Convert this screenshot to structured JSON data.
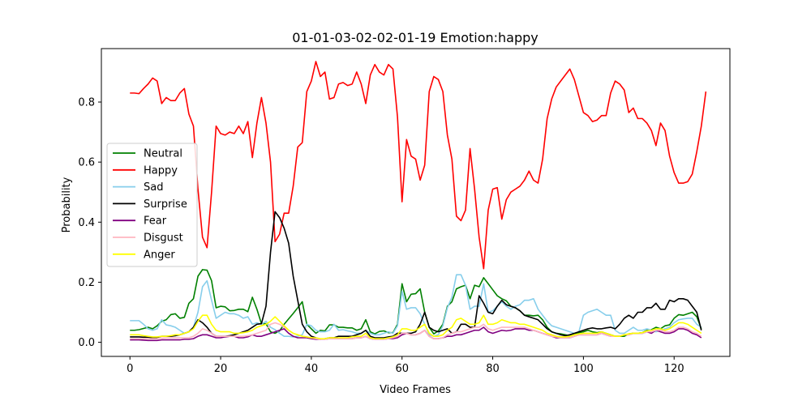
{
  "chart_data": {
    "type": "line",
    "title": "01-01-03-02-02-01-19 Emotion:happy",
    "xlabel": "Video Frames",
    "ylabel": "Probability",
    "xlim": [
      -6.3,
      132.3
    ],
    "ylim": [
      -0.047,
      0.978
    ],
    "xticks": [
      0,
      20,
      40,
      60,
      80,
      100,
      120
    ],
    "yticks": [
      0.0,
      0.2,
      0.4,
      0.6,
      0.8
    ],
    "xtick_labels": [
      "0",
      "20",
      "40",
      "60",
      "80",
      "100",
      "120"
    ],
    "ytick_labels": [
      "0.0",
      "0.2",
      "0.4",
      "0.6",
      "0.8"
    ],
    "grid": false,
    "legend": "center-left",
    "series": [
      {
        "name": "Neutral",
        "color": "#008000",
        "values": [
          0.04,
          0.04,
          0.042,
          0.046,
          0.05,
          0.045,
          0.055,
          0.07,
          0.075,
          0.092,
          0.095,
          0.08,
          0.083,
          0.13,
          0.145,
          0.22,
          0.242,
          0.24,
          0.205,
          0.115,
          0.12,
          0.118,
          0.105,
          0.106,
          0.11,
          0.11,
          0.102,
          0.15,
          0.11,
          0.062,
          0.062,
          0.035,
          0.03,
          0.038,
          0.06,
          0.078,
          0.096,
          0.115,
          0.135,
          0.06,
          0.045,
          0.03,
          0.04,
          0.038,
          0.058,
          0.058,
          0.05,
          0.05,
          0.048,
          0.048,
          0.04,
          0.045,
          0.075,
          0.035,
          0.028,
          0.036,
          0.038,
          0.032,
          0.032,
          0.06,
          0.195,
          0.135,
          0.16,
          0.162,
          0.178,
          0.1,
          0.05,
          0.028,
          0.038,
          0.06,
          0.12,
          0.135,
          0.178,
          0.185,
          0.19,
          0.145,
          0.19,
          0.185,
          0.215,
          0.195,
          0.175,
          0.155,
          0.145,
          0.138,
          0.12,
          0.115,
          0.105,
          0.09,
          0.09,
          0.088,
          0.09,
          0.075,
          0.05,
          0.035,
          0.03,
          0.028,
          0.025,
          0.022,
          0.028,
          0.032,
          0.035,
          0.04,
          0.035,
          0.032,
          0.035,
          0.03,
          0.025,
          0.02,
          0.02,
          0.02,
          0.028,
          0.03,
          0.03,
          0.032,
          0.04,
          0.042,
          0.05,
          0.045,
          0.055,
          0.058,
          0.08,
          0.092,
          0.09,
          0.095,
          0.1,
          0.085,
          0.045
        ]
      },
      {
        "name": "Happy",
        "color": "#ff0000",
        "values": [
          0.83,
          0.83,
          0.828,
          0.845,
          0.86,
          0.88,
          0.87,
          0.795,
          0.815,
          0.805,
          0.805,
          0.83,
          0.845,
          0.76,
          0.72,
          0.51,
          0.35,
          0.315,
          0.5,
          0.72,
          0.695,
          0.69,
          0.7,
          0.695,
          0.72,
          0.695,
          0.735,
          0.615,
          0.73,
          0.815,
          0.73,
          0.6,
          0.335,
          0.36,
          0.43,
          0.43,
          0.52,
          0.65,
          0.665,
          0.835,
          0.87,
          0.935,
          0.885,
          0.9,
          0.81,
          0.815,
          0.86,
          0.865,
          0.855,
          0.86,
          0.9,
          0.86,
          0.795,
          0.89,
          0.925,
          0.9,
          0.89,
          0.925,
          0.91,
          0.75,
          0.468,
          0.675,
          0.62,
          0.61,
          0.54,
          0.59,
          0.835,
          0.885,
          0.875,
          0.835,
          0.69,
          0.61,
          0.42,
          0.405,
          0.44,
          0.645,
          0.51,
          0.35,
          0.245,
          0.44,
          0.51,
          0.515,
          0.41,
          0.475,
          0.5,
          0.51,
          0.52,
          0.54,
          0.57,
          0.54,
          0.53,
          0.61,
          0.745,
          0.81,
          0.85,
          0.87,
          0.89,
          0.91,
          0.875,
          0.82,
          0.765,
          0.755,
          0.735,
          0.74,
          0.755,
          0.755,
          0.83,
          0.87,
          0.86,
          0.84,
          0.765,
          0.78,
          0.745,
          0.745,
          0.73,
          0.705,
          0.655,
          0.73,
          0.705,
          0.62,
          0.565,
          0.53,
          0.53,
          0.535,
          0.56,
          0.635,
          0.72,
          0.835
        ]
      },
      {
        "name": "Sad",
        "color": "#87ceeb",
        "values": [
          0.072,
          0.072,
          0.072,
          0.06,
          0.045,
          0.04,
          0.045,
          0.075,
          0.058,
          0.055,
          0.05,
          0.04,
          0.03,
          0.035,
          0.05,
          0.1,
          0.185,
          0.205,
          0.14,
          0.08,
          0.09,
          0.1,
          0.095,
          0.095,
          0.09,
          0.08,
          0.085,
          0.06,
          0.065,
          0.06,
          0.07,
          0.05,
          0.042,
          0.03,
          0.02,
          0.02,
          0.018,
          0.02,
          0.025,
          0.06,
          0.055,
          0.04,
          0.035,
          0.035,
          0.04,
          0.06,
          0.04,
          0.042,
          0.038,
          0.035,
          0.03,
          0.03,
          0.04,
          0.03,
          0.025,
          0.025,
          0.03,
          0.035,
          0.03,
          0.055,
          0.17,
          0.11,
          0.115,
          0.115,
          0.095,
          0.06,
          0.025,
          0.02,
          0.025,
          0.055,
          0.115,
          0.15,
          0.225,
          0.225,
          0.19,
          0.11,
          0.12,
          0.12,
          0.195,
          0.1,
          0.105,
          0.12,
          0.135,
          0.12,
          0.11,
          0.12,
          0.125,
          0.14,
          0.14,
          0.145,
          0.11,
          0.09,
          0.07,
          0.055,
          0.05,
          0.045,
          0.04,
          0.035,
          0.03,
          0.035,
          0.09,
          0.1,
          0.105,
          0.11,
          0.1,
          0.09,
          0.09,
          0.04,
          0.03,
          0.03,
          0.04,
          0.05,
          0.04,
          0.04,
          0.045,
          0.04,
          0.035,
          0.04,
          0.045,
          0.05,
          0.065,
          0.075,
          0.078,
          0.08,
          0.08,
          0.06,
          0.05
        ]
      },
      {
        "name": "Surprise",
        "color": "#000000",
        "values": [
          0.018,
          0.018,
          0.018,
          0.017,
          0.017,
          0.015,
          0.016,
          0.02,
          0.02,
          0.02,
          0.022,
          0.025,
          0.03,
          0.035,
          0.05,
          0.075,
          0.065,
          0.05,
          0.03,
          0.02,
          0.02,
          0.02,
          0.022,
          0.025,
          0.03,
          0.035,
          0.04,
          0.05,
          0.06,
          0.062,
          0.12,
          0.3,
          0.435,
          0.415,
          0.38,
          0.33,
          0.22,
          0.14,
          0.06,
          0.035,
          0.02,
          0.015,
          0.01,
          0.012,
          0.015,
          0.015,
          0.02,
          0.02,
          0.02,
          0.02,
          0.025,
          0.03,
          0.04,
          0.02,
          0.015,
          0.015,
          0.015,
          0.018,
          0.02,
          0.03,
          0.03,
          0.03,
          0.03,
          0.035,
          0.06,
          0.1,
          0.05,
          0.04,
          0.035,
          0.04,
          0.045,
          0.03,
          0.035,
          0.06,
          0.06,
          0.05,
          0.05,
          0.155,
          0.13,
          0.1,
          0.095,
          0.12,
          0.14,
          0.125,
          0.12,
          0.115,
          0.105,
          0.09,
          0.085,
          0.08,
          0.075,
          0.06,
          0.045,
          0.035,
          0.03,
          0.025,
          0.022,
          0.025,
          0.03,
          0.035,
          0.04,
          0.045,
          0.048,
          0.045,
          0.045,
          0.048,
          0.05,
          0.045,
          0.06,
          0.08,
          0.09,
          0.08,
          0.1,
          0.1,
          0.115,
          0.115,
          0.13,
          0.11,
          0.11,
          0.14,
          0.135,
          0.145,
          0.145,
          0.14,
          0.12,
          0.1,
          0.04
        ]
      },
      {
        "name": "Fear",
        "color": "#800080",
        "values": [
          0.008,
          0.008,
          0.008,
          0.007,
          0.006,
          0.006,
          0.006,
          0.008,
          0.008,
          0.008,
          0.008,
          0.008,
          0.01,
          0.01,
          0.012,
          0.02,
          0.025,
          0.025,
          0.02,
          0.015,
          0.015,
          0.018,
          0.02,
          0.02,
          0.015,
          0.015,
          0.018,
          0.025,
          0.02,
          0.02,
          0.025,
          0.03,
          0.035,
          0.04,
          0.045,
          0.03,
          0.02,
          0.015,
          0.015,
          0.015,
          0.012,
          0.01,
          0.01,
          0.01,
          0.012,
          0.012,
          0.012,
          0.012,
          0.012,
          0.012,
          0.015,
          0.015,
          0.02,
          0.012,
          0.01,
          0.01,
          0.01,
          0.012,
          0.012,
          0.015,
          0.025,
          0.03,
          0.025,
          0.025,
          0.03,
          0.04,
          0.02,
          0.012,
          0.012,
          0.015,
          0.02,
          0.02,
          0.025,
          0.025,
          0.03,
          0.035,
          0.04,
          0.04,
          0.05,
          0.035,
          0.03,
          0.035,
          0.04,
          0.038,
          0.04,
          0.045,
          0.045,
          0.045,
          0.04,
          0.04,
          0.035,
          0.03,
          0.025,
          0.02,
          0.015,
          0.015,
          0.015,
          0.015,
          0.02,
          0.025,
          0.025,
          0.025,
          0.025,
          0.025,
          0.03,
          0.025,
          0.02,
          0.02,
          0.02,
          0.025,
          0.025,
          0.03,
          0.03,
          0.03,
          0.035,
          0.03,
          0.04,
          0.035,
          0.03,
          0.03,
          0.035,
          0.045,
          0.045,
          0.04,
          0.03,
          0.025,
          0.015
        ]
      },
      {
        "name": "Disgust",
        "color": "#ffb6c1",
        "values": [
          0.012,
          0.012,
          0.012,
          0.012,
          0.012,
          0.012,
          0.012,
          0.014,
          0.015,
          0.015,
          0.015,
          0.015,
          0.015,
          0.015,
          0.02,
          0.03,
          0.045,
          0.04,
          0.03,
          0.02,
          0.02,
          0.02,
          0.02,
          0.02,
          0.02,
          0.02,
          0.022,
          0.025,
          0.03,
          0.035,
          0.04,
          0.06,
          0.065,
          0.06,
          0.05,
          0.04,
          0.03,
          0.025,
          0.02,
          0.018,
          0.015,
          0.012,
          0.01,
          0.01,
          0.012,
          0.012,
          0.012,
          0.012,
          0.012,
          0.012,
          0.015,
          0.015,
          0.02,
          0.012,
          0.01,
          0.01,
          0.01,
          0.012,
          0.015,
          0.02,
          0.03,
          0.03,
          0.025,
          0.025,
          0.03,
          0.04,
          0.02,
          0.012,
          0.012,
          0.015,
          0.025,
          0.03,
          0.035,
          0.035,
          0.04,
          0.045,
          0.05,
          0.05,
          0.06,
          0.045,
          0.04,
          0.045,
          0.05,
          0.05,
          0.05,
          0.05,
          0.05,
          0.05,
          0.045,
          0.04,
          0.035,
          0.03,
          0.025,
          0.02,
          0.018,
          0.015,
          0.015,
          0.015,
          0.02,
          0.025,
          0.025,
          0.025,
          0.025,
          0.025,
          0.03,
          0.025,
          0.02,
          0.02,
          0.02,
          0.025,
          0.025,
          0.03,
          0.03,
          0.03,
          0.035,
          0.035,
          0.04,
          0.04,
          0.035,
          0.035,
          0.04,
          0.05,
          0.05,
          0.045,
          0.035,
          0.03,
          0.02
        ]
      },
      {
        "name": "Anger",
        "color": "#ffff00",
        "values": [
          0.025,
          0.025,
          0.025,
          0.022,
          0.02,
          0.018,
          0.018,
          0.02,
          0.02,
          0.022,
          0.025,
          0.025,
          0.03,
          0.035,
          0.045,
          0.07,
          0.09,
          0.09,
          0.06,
          0.04,
          0.035,
          0.035,
          0.035,
          0.03,
          0.03,
          0.032,
          0.035,
          0.04,
          0.05,
          0.055,
          0.06,
          0.07,
          0.085,
          0.07,
          0.055,
          0.04,
          0.03,
          0.025,
          0.02,
          0.018,
          0.015,
          0.015,
          0.012,
          0.012,
          0.015,
          0.015,
          0.015,
          0.015,
          0.015,
          0.018,
          0.02,
          0.02,
          0.03,
          0.015,
          0.012,
          0.012,
          0.012,
          0.015,
          0.018,
          0.025,
          0.045,
          0.045,
          0.04,
          0.04,
          0.05,
          0.06,
          0.03,
          0.02,
          0.02,
          0.025,
          0.04,
          0.05,
          0.075,
          0.08,
          0.07,
          0.06,
          0.06,
          0.065,
          0.09,
          0.06,
          0.06,
          0.065,
          0.075,
          0.07,
          0.065,
          0.065,
          0.06,
          0.06,
          0.055,
          0.05,
          0.045,
          0.04,
          0.03,
          0.025,
          0.02,
          0.018,
          0.018,
          0.02,
          0.025,
          0.028,
          0.03,
          0.03,
          0.03,
          0.03,
          0.035,
          0.03,
          0.025,
          0.02,
          0.02,
          0.025,
          0.028,
          0.03,
          0.03,
          0.032,
          0.038,
          0.04,
          0.045,
          0.045,
          0.04,
          0.045,
          0.055,
          0.065,
          0.065,
          0.06,
          0.05,
          0.04,
          0.03
        ]
      }
    ]
  }
}
